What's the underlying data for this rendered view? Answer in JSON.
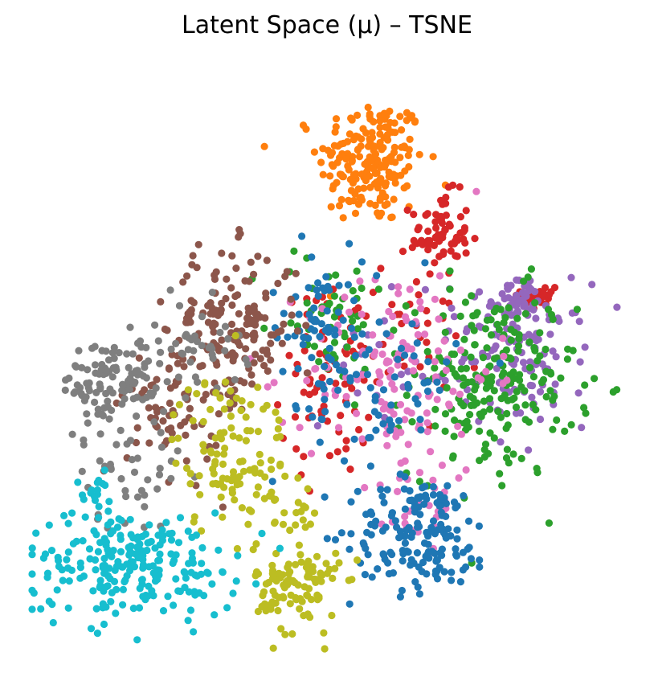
{
  "title": "Latent Space (μ) – TSNE",
  "chart_data": {
    "type": "scatter",
    "title": "Latent Space (μ) – TSNE",
    "xlabel": "",
    "ylabel": "",
    "axes_visible": false,
    "grid": false,
    "legend": "none",
    "xlim": [
      0,
      100
    ],
    "ylim": [
      0,
      100
    ],
    "marker_colors": [
      "#1f77b4",
      "#ff7f0e",
      "#2ca02c",
      "#d62728",
      "#9467bd",
      "#8c564b",
      "#e377c2",
      "#7f7f7f",
      "#bcbd22",
      "#17becf"
    ],
    "series": [
      {
        "color": "#ff7f0e",
        "clusters": [
          {
            "cx": 57.5,
            "cy": 84.0,
            "sx": 4.5,
            "sy": 5.5,
            "n": 200
          }
        ]
      },
      {
        "color": "#d62728",
        "clusters": [
          {
            "cx": 69.0,
            "cy": 71.5,
            "sx": 2.5,
            "sy": 3.5,
            "n": 70
          },
          {
            "cx": 86.0,
            "cy": 61.0,
            "sx": 1.6,
            "sy": 1.4,
            "n": 25
          },
          {
            "cx": 50.0,
            "cy": 46.0,
            "sx": 4.0,
            "sy": 8.0,
            "n": 60
          },
          {
            "cx": 60.0,
            "cy": 53.0,
            "sx": 8.0,
            "sy": 5.0,
            "n": 40
          }
        ]
      },
      {
        "color": "#9467bd",
        "clusters": [
          {
            "cx": 82.0,
            "cy": 60.0,
            "sx": 2.0,
            "sy": 2.0,
            "n": 40
          },
          {
            "cx": 84.0,
            "cy": 51.0,
            "sx": 5.0,
            "sy": 6.0,
            "n": 110
          },
          {
            "cx": 65.0,
            "cy": 50.0,
            "sx": 8.0,
            "sy": 6.0,
            "n": 40
          }
        ]
      },
      {
        "color": "#2ca02c",
        "clusters": [
          {
            "cx": 78.0,
            "cy": 46.0,
            "sx": 7.0,
            "sy": 8.0,
            "n": 220
          },
          {
            "cx": 50.0,
            "cy": 58.0,
            "sx": 5.0,
            "sy": 6.0,
            "n": 50
          }
        ]
      },
      {
        "color": "#e377c2",
        "clusters": [
          {
            "cx": 62.0,
            "cy": 48.0,
            "sx": 8.0,
            "sy": 9.0,
            "n": 130
          },
          {
            "cx": 66.0,
            "cy": 24.0,
            "sx": 3.0,
            "sy": 4.0,
            "n": 30
          }
        ]
      },
      {
        "color": "#1f77b4",
        "clusters": [
          {
            "cx": 66.0,
            "cy": 20.0,
            "sx": 6.0,
            "sy": 5.0,
            "n": 160
          },
          {
            "cx": 48.0,
            "cy": 56.0,
            "sx": 4.0,
            "sy": 7.0,
            "n": 60
          },
          {
            "cx": 60.0,
            "cy": 46.0,
            "sx": 6.0,
            "sy": 8.0,
            "n": 70
          }
        ]
      },
      {
        "color": "#8c564b",
        "clusters": [
          {
            "cx": 34.0,
            "cy": 56.0,
            "sx": 5.5,
            "sy": 6.5,
            "n": 160
          },
          {
            "cx": 24.0,
            "cy": 42.0,
            "sx": 4.0,
            "sy": 6.0,
            "n": 70
          }
        ]
      },
      {
        "color": "#7f7f7f",
        "clusters": [
          {
            "cx": 14.0,
            "cy": 46.0,
            "sx": 4.5,
            "sy": 4.0,
            "n": 110
          },
          {
            "cx": 16.0,
            "cy": 30.0,
            "sx": 4.5,
            "sy": 4.5,
            "n": 40
          },
          {
            "cx": 28.0,
            "cy": 52.0,
            "sx": 4.0,
            "sy": 4.0,
            "n": 40
          }
        ]
      },
      {
        "color": "#bcbd22",
        "clusters": [
          {
            "cx": 34.0,
            "cy": 34.0,
            "sx": 5.0,
            "sy": 7.0,
            "n": 120
          },
          {
            "cx": 45.0,
            "cy": 11.0,
            "sx": 3.5,
            "sy": 4.0,
            "n": 110
          },
          {
            "cx": 46.0,
            "cy": 23.0,
            "sx": 1.5,
            "sy": 1.5,
            "n": 12
          }
        ]
      },
      {
        "color": "#17becf",
        "clusters": [
          {
            "cx": 17.0,
            "cy": 15.0,
            "sx": 9.0,
            "sy": 4.5,
            "n": 230
          },
          {
            "cx": 11.0,
            "cy": 28.0,
            "sx": 2.0,
            "sy": 2.0,
            "n": 15
          }
        ]
      }
    ]
  }
}
